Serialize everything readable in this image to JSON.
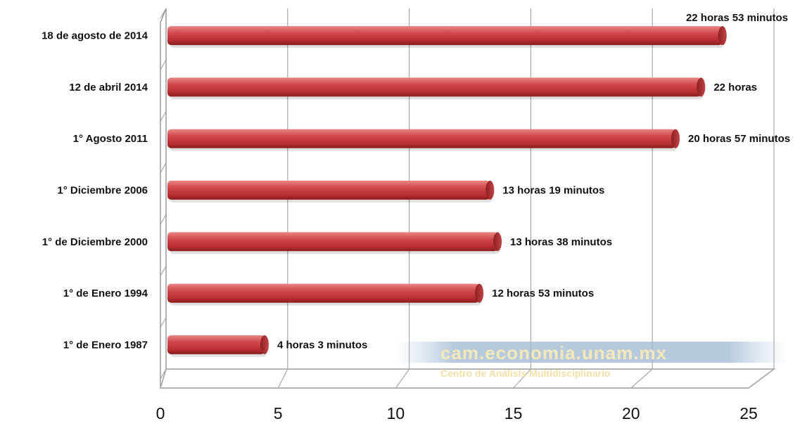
{
  "chart_data": {
    "type": "bar",
    "orientation": "horizontal",
    "categories": [
      "18 de agosto de 2014",
      "12 de abril 2014",
      "1° Agosto 2011",
      "1° Diciembre 2006",
      "1° de Diciembre 2000",
      "1° de Enero 1994",
      "1° de Enero 1987"
    ],
    "values": [
      22.88,
      22,
      20.95,
      13.32,
      13.63,
      12.88,
      4.05
    ],
    "data_labels": [
      "22 horas 53 minutos",
      "22 horas",
      "20 horas 57 minutos",
      "13 horas 19 minutos",
      "13 horas 38 minutos",
      "12 horas 53 minutos",
      "4 horas 3 minutos"
    ],
    "x_ticks": [
      "0",
      "5",
      "10",
      "15",
      "20",
      "25"
    ],
    "xlim": [
      0,
      25
    ],
    "grid": true,
    "bar_color": "#c83a3c",
    "title": "",
    "xlabel": "",
    "ylabel": ""
  },
  "watermark": {
    "main": "cam.economia.unam.mx",
    "sub": "Centro de Análisis Multidisciplinario"
  }
}
